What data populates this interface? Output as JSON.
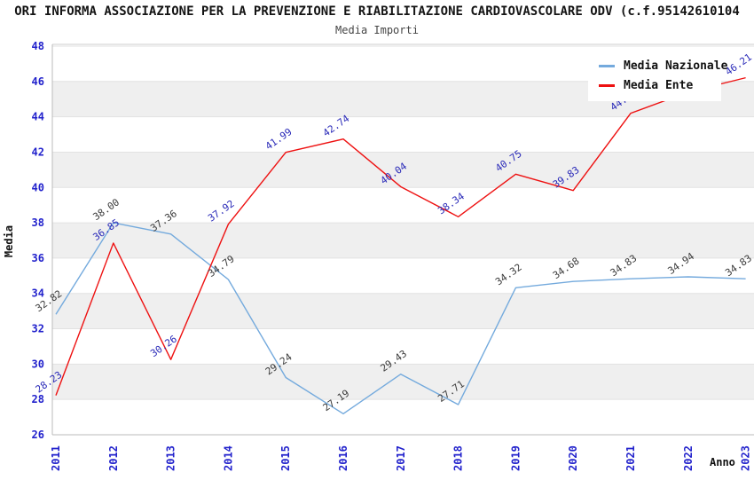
{
  "header": {
    "title": "ORI INFORMA ASSOCIAZIONE PER LA PREVENZIONE E RIABILITAZIONE CARDIOVASCOLARE ODV (c.f.95142610104",
    "title_note": "title is wider than the window and clipped on both sides",
    "subtitle": "Media Importi"
  },
  "legend": {
    "position": "top-right",
    "items": [
      {
        "label": "Media Nazionale",
        "color": "#74aadd"
      },
      {
        "label": "Media Ente",
        "color": "#ee1111"
      }
    ]
  },
  "chart_data": {
    "type": "line",
    "title": "Media Importi",
    "xlabel": "Anno",
    "ylabel": "Media",
    "categories": [
      "2011",
      "2012",
      "2013",
      "2014",
      "2015",
      "2016",
      "2017",
      "2018",
      "2019",
      "2020",
      "2021",
      "2022",
      "2023"
    ],
    "series": [
      {
        "name": "Media Nazionale",
        "color": "#74aadd",
        "label_color": "#3a3a3a",
        "values": [
          32.82,
          38.0,
          37.36,
          34.79,
          29.24,
          27.19,
          29.43,
          27.71,
          34.32,
          34.68,
          34.83,
          34.94,
          34.83
        ]
      },
      {
        "name": "Media Ente",
        "color": "#ee1111",
        "label_color": "#2929b8",
        "values": [
          28.23,
          36.85,
          30.26,
          37.92,
          41.99,
          42.74,
          40.04,
          38.34,
          40.75,
          39.83,
          44.2,
          45.4,
          46.21
        ],
        "note": "2022 point label is hidden behind the legend box; 45.40 estimated from line position"
      }
    ],
    "ylim": [
      26,
      48.1
    ],
    "yticks": [
      26,
      28,
      30,
      32,
      34,
      36,
      38,
      40,
      42,
      44,
      46,
      48
    ],
    "grid": "horizontal",
    "band_color": "#efefef",
    "band_intervals": [
      [
        28,
        30
      ],
      [
        32,
        34
      ],
      [
        36,
        38
      ],
      [
        40,
        42
      ],
      [
        44,
        46
      ]
    ],
    "tick_label_color": "#2222cc",
    "axis_color": "#bbbbbb",
    "grid_color": "#e2e2e2",
    "point_label_rotation_deg": -35,
    "x_tick_rotation_deg": -90,
    "legend_position": "top-right"
  }
}
